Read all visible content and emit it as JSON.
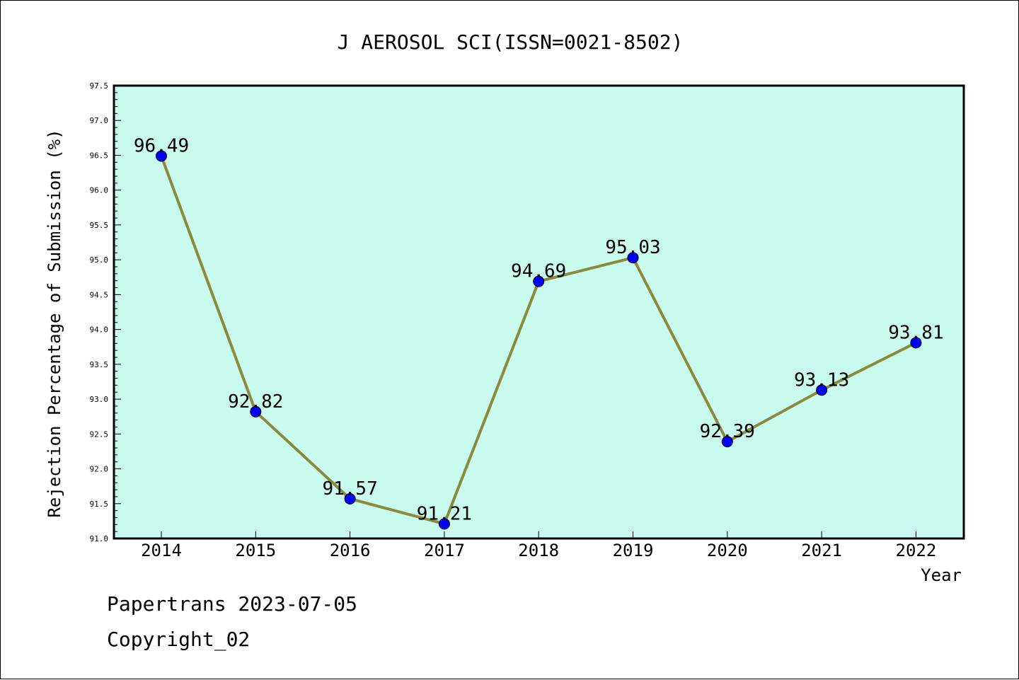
{
  "footer": {
    "line1": "Papertrans 2023-07-05",
    "line2": "Copyright_02"
  },
  "chart_data": {
    "type": "line",
    "title": "J AEROSOL SCI(ISSN=0021-8502)",
    "xlabel": "Year",
    "ylabel": "Rejection Percentage of Submission (%)",
    "x": [
      "2014",
      "2015",
      "2016",
      "2017",
      "2018",
      "2019",
      "2020",
      "2021",
      "2022"
    ],
    "series": [
      {
        "values": [
          96.49,
          92.82,
          91.57,
          91.21,
          94.69,
          95.03,
          92.39,
          93.13,
          93.81
        ],
        "data_labels": [
          "96.49",
          "92.82",
          "91.57",
          "91.21",
          "94.69",
          "95.03",
          "92.39",
          "93.13",
          "93.81"
        ]
      }
    ],
    "ylim": [
      91.0,
      97.5
    ],
    "y_ticks": [
      "91.0",
      "91.5",
      "92.0",
      "92.5",
      "93.0",
      "93.5",
      "94.0",
      "94.5",
      "95.0",
      "95.5",
      "96.0",
      "96.5",
      "97.0",
      "97.5"
    ],
    "grid": false,
    "legend": "none",
    "colors": {
      "plot_background": "#c8fbee",
      "line": "#8b8a3c",
      "marker": "#0000ff"
    }
  }
}
